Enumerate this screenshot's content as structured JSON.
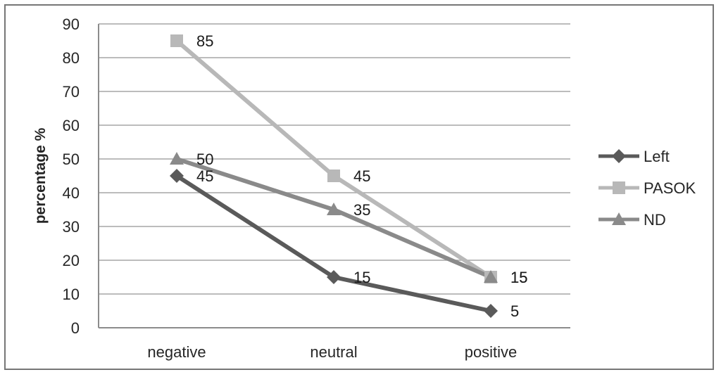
{
  "chart_data": {
    "type": "line",
    "categories": [
      "negative",
      "neutral",
      "positive"
    ],
    "series": [
      {
        "name": "Left",
        "values": [
          45,
          15,
          5
        ],
        "color": "#5a5a5a",
        "marker": "diamond"
      },
      {
        "name": "PASOK",
        "values": [
          85,
          45,
          15
        ],
        "color": "#b8b8b8",
        "marker": "square"
      },
      {
        "name": "ND",
        "values": [
          50,
          35,
          15
        ],
        "color": "#8a8a8a",
        "marker": "triangle"
      }
    ],
    "title": "",
    "xlabel": "",
    "ylabel": "percentage %",
    "ylim": [
      0,
      90
    ],
    "yticks": [
      0,
      10,
      20,
      30,
      40,
      50,
      60,
      70,
      80,
      90
    ],
    "grid": true,
    "legend_position": "right",
    "data_labels": true
  },
  "styles": {
    "text_color": "#262626",
    "data_label_color": "#1a1a1a",
    "gridline_color": "#a6a6a6",
    "axis_color": "#8c8c8c",
    "frame_border_color": "#767676",
    "background": "#ffffff"
  }
}
